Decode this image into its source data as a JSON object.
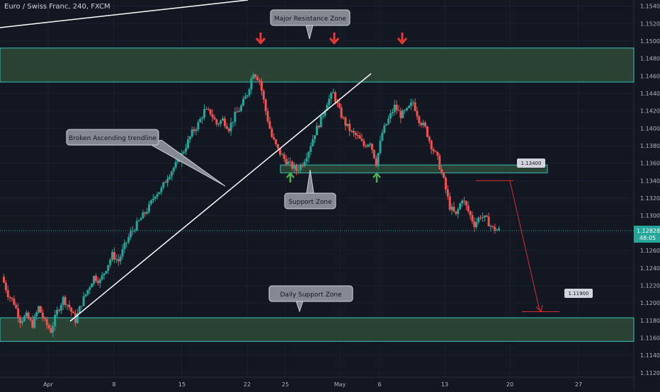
{
  "chart_data": {
    "type": "candlestick",
    "title": "Euro / Swiss Franc, 240, FXCM",
    "price_range": [
      1.1115,
      1.1547
    ],
    "y_ticks": [
      "1.15400",
      "1.15200",
      "1.15000",
      "1.14800",
      "1.14600",
      "1.14400",
      "1.14200",
      "1.14000",
      "1.13800",
      "1.13600",
      "1.13400",
      "1.13200",
      "1.13000",
      "1.12800",
      "1.12600",
      "1.12400",
      "1.12200",
      "1.12000",
      "1.11800",
      "1.11600",
      "1.11400",
      "1.11200"
    ],
    "x_ticks": [
      "Apr",
      "8",
      "15",
      "22",
      "25",
      "May",
      "6",
      "13",
      "20",
      "27"
    ],
    "current_price": "1.12828",
    "countdown": "48:05",
    "zones": [
      {
        "label": "Major Resistance Zone",
        "top": 1.1492,
        "bottom": 1.1453
      },
      {
        "label": "Support Zone",
        "top": 1.1358,
        "bottom": 1.1349
      },
      {
        "label": "Daily Support Zone",
        "top": 1.1183,
        "bottom": 1.1156
      }
    ],
    "annotations": [
      "Broken Ascending trendline",
      "Major Resistance Zone",
      "Support Zone",
      "Daily Support Zone"
    ],
    "price_labels": [
      "1.13400",
      "1.11900"
    ],
    "targets": {
      "entry": 1.134,
      "target": 1.119
    },
    "series_path": [
      1.123,
      1.121,
      1.12,
      1.118,
      1.1185,
      1.1175,
      1.1195,
      1.1178,
      1.1168,
      1.119,
      1.1205,
      1.1195,
      1.118,
      1.12,
      1.1215,
      1.123,
      1.1225,
      1.124,
      1.1255,
      1.1248,
      1.1265,
      1.128,
      1.129,
      1.13,
      1.131,
      1.1325,
      1.133,
      1.1345,
      1.1355,
      1.1365,
      1.138,
      1.1395,
      1.1405,
      1.142,
      1.1418,
      1.1405,
      1.141,
      1.14,
      1.1415,
      1.1425,
      1.144,
      1.1465,
      1.1455,
      1.142,
      1.139,
      1.1375,
      1.1365,
      1.1358,
      1.1352,
      1.136,
      1.1375,
      1.1395,
      1.141,
      1.143,
      1.144,
      1.142,
      1.1405,
      1.1395,
      1.139,
      1.138,
      1.1385,
      1.136,
      1.1395,
      1.141,
      1.1425,
      1.1415,
      1.142,
      1.143,
      1.141,
      1.14,
      1.138,
      1.1365,
      1.134,
      1.131,
      1.13,
      1.132,
      1.1305,
      1.129,
      1.13,
      1.1295,
      1.1285,
      1.1283
    ]
  }
}
